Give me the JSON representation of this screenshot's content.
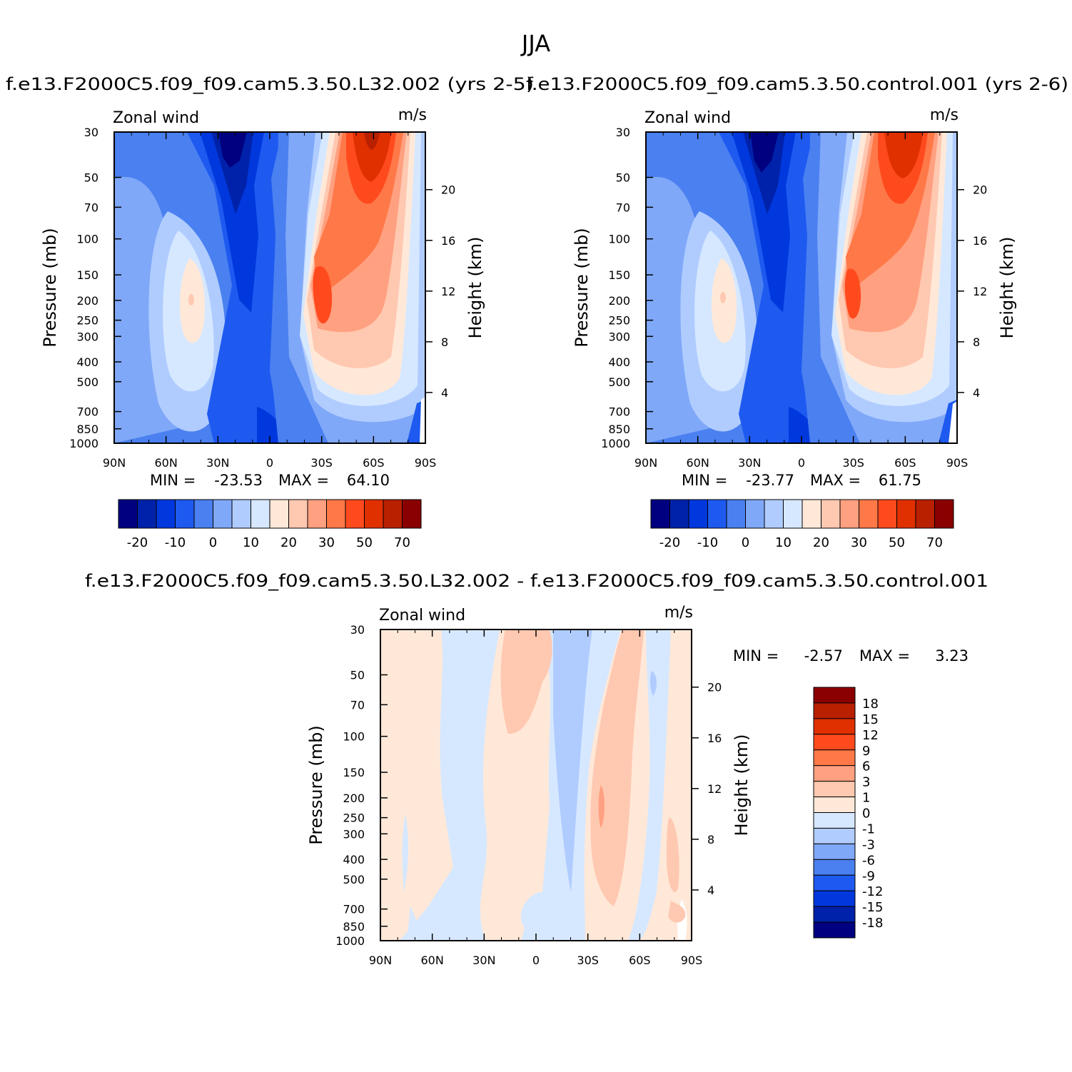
{
  "figure": {
    "title": "JJA"
  },
  "chart_data": [
    {
      "type": "heatmap",
      "id": "case",
      "title": "f.e13.F2000C5.f09_f09.cam5.3.50.L32.002 (yrs 2-5)",
      "field_label": "Zonal wind",
      "units": "m/s",
      "ylabel": "Pressure (mb)",
      "y2label": "Height (km)",
      "x_ticks": [
        "90N",
        "60N",
        "30N",
        "0",
        "30S",
        "60S",
        "90S"
      ],
      "y_ticks": [
        30,
        50,
        70,
        100,
        150,
        200,
        250,
        300,
        400,
        500,
        700,
        850,
        1000
      ],
      "y_scale": "log",
      "ylim": [
        30,
        1000
      ],
      "height_ticks": [
        20,
        16,
        12,
        8,
        4
      ],
      "min_label": "MIN =",
      "min_value": "-23.53",
      "max_label": "MAX =",
      "max_value": "64.10",
      "colorbar_labels": [
        "-20",
        "-10",
        "0",
        "10",
        "20",
        "30",
        "50",
        "70"
      ],
      "colorbar_colors": [
        "#000080",
        "#0022aa",
        "#0038dd",
        "#1e5af0",
        "#4a80f0",
        "#80a8f8",
        "#b0ccff",
        "#d6e8ff",
        "#ffe8d8",
        "#ffc8b0",
        "#ffa080",
        "#ff7848",
        "#ff4a1e",
        "#e03000",
        "#b82000",
        "#8a0000"
      ]
    },
    {
      "type": "heatmap",
      "id": "control",
      "title": "f.e13.F2000C5.f09_f09.cam5.3.50.control.001 (yrs 2-6)",
      "field_label": "Zonal wind",
      "units": "m/s",
      "ylabel": "Pressure (mb)",
      "y2label": "Height (km)",
      "x_ticks": [
        "90N",
        "60N",
        "30N",
        "0",
        "30S",
        "60S",
        "90S"
      ],
      "y_ticks": [
        30,
        50,
        70,
        100,
        150,
        200,
        250,
        300,
        400,
        500,
        700,
        850,
        1000
      ],
      "y_scale": "log",
      "ylim": [
        30,
        1000
      ],
      "height_ticks": [
        20,
        16,
        12,
        8,
        4
      ],
      "min_label": "MIN =",
      "min_value": "-23.77",
      "max_label": "MAX =",
      "max_value": "61.75",
      "colorbar_labels": [
        "-20",
        "-10",
        "0",
        "10",
        "20",
        "30",
        "50",
        "70"
      ],
      "colorbar_colors": [
        "#000080",
        "#0022aa",
        "#0038dd",
        "#1e5af0",
        "#4a80f0",
        "#80a8f8",
        "#b0ccff",
        "#d6e8ff",
        "#ffe8d8",
        "#ffc8b0",
        "#ffa080",
        "#ff7848",
        "#ff4a1e",
        "#e03000",
        "#b82000",
        "#8a0000"
      ]
    },
    {
      "type": "heatmap",
      "id": "diff",
      "title": "f.e13.F2000C5.f09_f09.cam5.3.50.L32.002 - f.e13.F2000C5.f09_f09.cam5.3.50.control.001",
      "field_label": "Zonal wind",
      "units": "m/s",
      "ylabel": "Pressure (mb)",
      "y2label": "Height (km)",
      "x_ticks": [
        "90N",
        "60N",
        "30N",
        "0",
        "30S",
        "60S",
        "90S"
      ],
      "y_ticks": [
        30,
        50,
        70,
        100,
        150,
        200,
        250,
        300,
        400,
        500,
        700,
        850,
        1000
      ],
      "y_scale": "log",
      "ylim": [
        30,
        1000
      ],
      "height_ticks": [
        20,
        16,
        12,
        8,
        4
      ],
      "min_label": "MIN =",
      "min_value": "-2.57",
      "max_label": "MAX =",
      "max_value": "3.23",
      "colorbar_labels": [
        "18",
        "15",
        "12",
        "9",
        "6",
        "3",
        "1",
        "0",
        "-1",
        "-3",
        "-6",
        "-9",
        "-12",
        "-15",
        "-18"
      ],
      "colorbar_colors": [
        "#8a0000",
        "#b82000",
        "#e03000",
        "#ff4a1e",
        "#ff7848",
        "#ffa080",
        "#ffc8b0",
        "#ffe8d8",
        "#d6e8ff",
        "#b0ccff",
        "#80a8f8",
        "#4a80f0",
        "#1e5af0",
        "#0038dd",
        "#0022aa",
        "#000080"
      ]
    }
  ]
}
